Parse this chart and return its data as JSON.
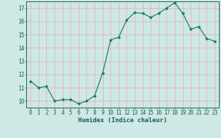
{
  "x": [
    0,
    1,
    2,
    3,
    4,
    5,
    6,
    7,
    8,
    9,
    10,
    11,
    12,
    13,
    14,
    15,
    16,
    17,
    18,
    19,
    20,
    21,
    22,
    23
  ],
  "y": [
    11.5,
    11.0,
    11.1,
    10.0,
    10.1,
    10.1,
    9.8,
    10.0,
    10.4,
    12.1,
    14.6,
    14.8,
    16.1,
    16.65,
    16.6,
    16.3,
    16.6,
    17.0,
    17.4,
    16.6,
    15.4,
    15.6,
    14.7,
    14.5
  ],
  "line_color": "#1a7a6e",
  "marker": "D",
  "marker_size": 2.0,
  "bg_color": "#cde8e5",
  "grid_color": "#e8b0b0",
  "axis_color": "#1a5a54",
  "xlabel": "Humidex (Indice chaleur)",
  "xlim": [
    -0.5,
    23.5
  ],
  "ylim": [
    9.5,
    17.5
  ],
  "yticks": [
    10,
    11,
    12,
    13,
    14,
    15,
    16,
    17
  ],
  "xticks": [
    0,
    1,
    2,
    3,
    4,
    5,
    6,
    7,
    8,
    9,
    10,
    11,
    12,
    13,
    14,
    15,
    16,
    17,
    18,
    19,
    20,
    21,
    22,
    23
  ],
  "xlabel_fontsize": 6.5,
  "tick_fontsize": 5.5
}
